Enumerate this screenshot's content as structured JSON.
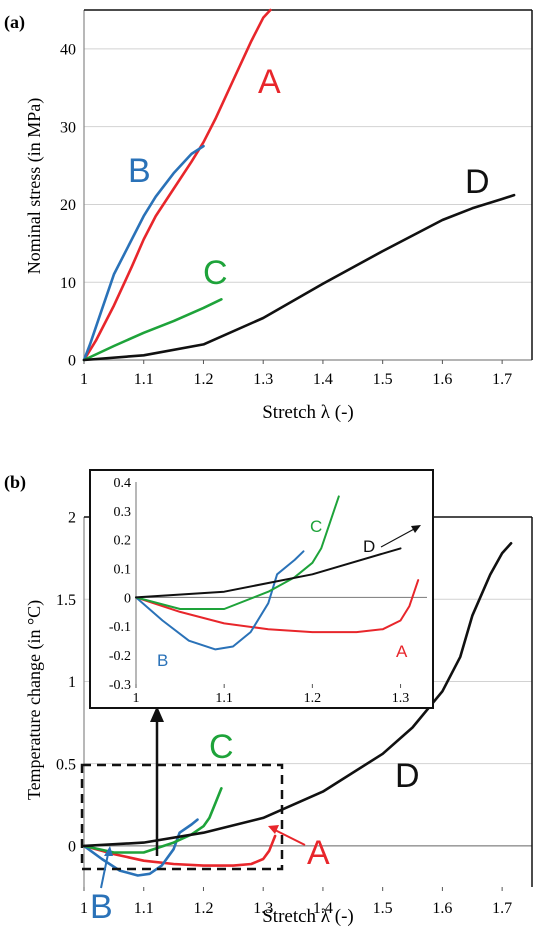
{
  "chart_data": [
    {
      "panel_label": "(a)",
      "type": "line",
      "xlabel": "Stretch λ (-)",
      "ylabel": "Nominal stress (in MPa)",
      "xlim": [
        1,
        1.75
      ],
      "ylim": [
        0,
        45
      ],
      "x_ticks": [
        "1",
        "1.1",
        "1.2",
        "1.3",
        "1.4",
        "1.5",
        "1.6",
        "1.7"
      ],
      "y_ticks": [
        "0",
        "10",
        "20",
        "30",
        "40"
      ],
      "grid": true,
      "series": [
        {
          "name": "A",
          "color": "#e8262b",
          "x": [
            1.0,
            1.02,
            1.05,
            1.08,
            1.1,
            1.12,
            1.15,
            1.18,
            1.2,
            1.22,
            1.25,
            1.28,
            1.3,
            1.312
          ],
          "y": [
            0,
            2.5,
            7,
            12,
            15.5,
            18.5,
            22,
            25.5,
            28,
            31,
            36,
            41,
            44,
            45
          ]
        },
        {
          "name": "B",
          "color": "#2a72b8",
          "x": [
            1.0,
            1.01,
            1.03,
            1.05,
            1.08,
            1.1,
            1.12,
            1.15,
            1.18,
            1.2
          ],
          "y": [
            0,
            2,
            6.5,
            11,
            15.5,
            18.5,
            21,
            24,
            26.5,
            27.5
          ]
        },
        {
          "name": "C",
          "color": "#1ea33a",
          "x": [
            1.0,
            1.05,
            1.1,
            1.15,
            1.2,
            1.23
          ],
          "y": [
            0,
            1.8,
            3.5,
            5,
            6.7,
            7.8
          ]
        },
        {
          "name": "D",
          "color": "#111111",
          "x": [
            1.0,
            1.1,
            1.2,
            1.3,
            1.4,
            1.5,
            1.6,
            1.65,
            1.7,
            1.72
          ],
          "y": [
            0,
            0.6,
            2,
            5.4,
            9.8,
            14,
            18,
            19.5,
            20.7,
            21.2
          ]
        }
      ]
    },
    {
      "panel_label": "(b)",
      "type": "line",
      "xlabel": "Stretch λ (-)",
      "ylabel": "Temperature change (in °C)",
      "xlim": [
        1,
        1.75
      ],
      "ylim": [
        -0.25,
        2
      ],
      "x_ticks": [
        "1",
        "1.1",
        "1.2",
        "1.3",
        "1.4",
        "1.5",
        "1.6",
        "1.7"
      ],
      "y_ticks": [
        "0",
        "0.5",
        "1",
        "1.5",
        "2"
      ],
      "grid": true,
      "series": [
        {
          "name": "A",
          "color": "#e8262b",
          "x": [
            1.0,
            1.05,
            1.1,
            1.15,
            1.2,
            1.25,
            1.28,
            1.3,
            1.31,
            1.32
          ],
          "y": [
            0,
            -0.05,
            -0.09,
            -0.11,
            -0.12,
            -0.12,
            -0.11,
            -0.08,
            -0.03,
            0.06
          ]
        },
        {
          "name": "B",
          "color": "#2a72b8",
          "x": [
            1.0,
            1.03,
            1.06,
            1.09,
            1.11,
            1.13,
            1.15,
            1.16,
            1.18,
            1.19
          ],
          "y": [
            0,
            -0.08,
            -0.15,
            -0.18,
            -0.17,
            -0.12,
            -0.02,
            0.08,
            0.13,
            0.16
          ]
        },
        {
          "name": "C",
          "color": "#1ea33a",
          "x": [
            1.0,
            1.05,
            1.1,
            1.15,
            1.18,
            1.2,
            1.21,
            1.22,
            1.23
          ],
          "y": [
            0,
            -0.04,
            -0.04,
            0.02,
            0.07,
            0.12,
            0.17,
            0.26,
            0.35
          ]
        },
        {
          "name": "D",
          "color": "#111111",
          "x": [
            1.0,
            1.1,
            1.2,
            1.3,
            1.4,
            1.5,
            1.55,
            1.6,
            1.63,
            1.65,
            1.68,
            1.7,
            1.715
          ],
          "y": [
            0,
            0.02,
            0.08,
            0.17,
            0.33,
            0.56,
            0.72,
            0.94,
            1.15,
            1.4,
            1.65,
            1.78,
            1.84
          ]
        }
      ],
      "inset": {
        "xlim": [
          1,
          1.33
        ],
        "ylim": [
          -0.3,
          0.4
        ],
        "x_ticks": [
          "1",
          "1.1",
          "1.2",
          "1.3"
        ],
        "y_ticks": [
          "0.4",
          "0.3",
          "0.2",
          "0.1",
          "0",
          "-0.1",
          "-0.2",
          "-0.3"
        ],
        "series_labels": [
          "A",
          "B",
          "C",
          "D"
        ]
      }
    }
  ],
  "annotations": {
    "a": {
      "A": "A",
      "B": "B",
      "C": "C",
      "D": "D"
    },
    "b": {
      "A": "A",
      "B": "B",
      "C": "C",
      "D": "D"
    }
  }
}
